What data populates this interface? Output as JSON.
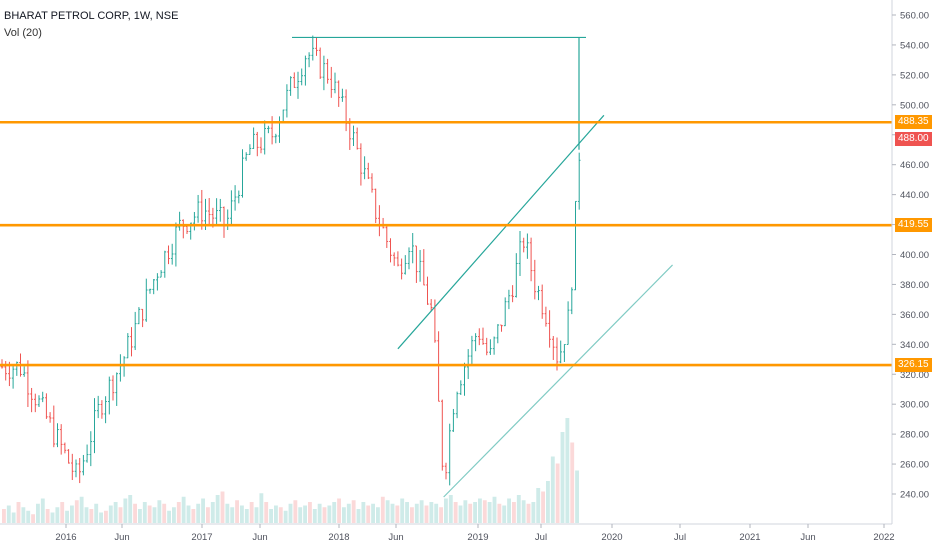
{
  "header": {
    "title": "BHARAT PETROL CORP, 1W, NSE",
    "volume_indicator": "Vol (20)"
  },
  "colors": {
    "up": "#26a69a",
    "down": "#ef5350",
    "level_line": "#ff9800",
    "trend_line": "#26a69a",
    "last_price_badge": "#ef5350",
    "level_badge": "#ff9800"
  },
  "chart_data": {
    "type": "candlestick",
    "y_axis_ticks": [
      560,
      540,
      520,
      500,
      480,
      460,
      440,
      420,
      400,
      380,
      360,
      340,
      320,
      300,
      280,
      260,
      240
    ],
    "x_axis_ticks": [
      "2016",
      "Jun",
      "2017",
      "Jun",
      "2018",
      "Jun",
      "2019",
      "Jul",
      "2020",
      "Jul",
      "2021",
      "Jun",
      "2022"
    ],
    "ylim": [
      222,
      566
    ],
    "horizontal_levels": [
      {
        "label": "488.35",
        "value": 488.35
      },
      {
        "label": "419.55",
        "value": 419.55
      },
      {
        "label": "326.15",
        "value": 326.15
      }
    ],
    "last_price": {
      "label": "488.00",
      "value": 488.0
    },
    "grid": false,
    "approx_price_path": [
      {
        "date": "2015-09",
        "value": 325
      },
      {
        "date": "2015-11",
        "value": 295
      },
      {
        "date": "2016-02",
        "value": 250
      },
      {
        "date": "2016-04",
        "value": 300
      },
      {
        "date": "2016-06",
        "value": 330
      },
      {
        "date": "2016-09",
        "value": 390
      },
      {
        "date": "2016-11",
        "value": 420
      },
      {
        "date": "2017-01",
        "value": 430
      },
      {
        "date": "2017-03",
        "value": 420
      },
      {
        "date": "2017-05",
        "value": 470
      },
      {
        "date": "2017-07",
        "value": 480
      },
      {
        "date": "2017-08",
        "value": 500
      },
      {
        "date": "2017-10",
        "value": 535
      },
      {
        "date": "2017-12",
        "value": 520
      },
      {
        "date": "2018-02",
        "value": 480
      },
      {
        "date": "2018-04",
        "value": 430
      },
      {
        "date": "2018-06",
        "value": 390
      },
      {
        "date": "2018-07",
        "value": 410
      },
      {
        "date": "2018-09",
        "value": 360
      },
      {
        "date": "2018-10",
        "value": 250
      },
      {
        "date": "2018-11",
        "value": 310
      },
      {
        "date": "2019-01",
        "value": 350
      },
      {
        "date": "2019-02",
        "value": 330
      },
      {
        "date": "2019-04",
        "value": 380
      },
      {
        "date": "2019-05",
        "value": 410
      },
      {
        "date": "2019-06",
        "value": 380
      },
      {
        "date": "2019-07",
        "value": 360
      },
      {
        "date": "2019-08",
        "value": 330
      },
      {
        "date": "2019-09",
        "value": 360
      },
      {
        "date": "2019-10",
        "value": 488
      }
    ],
    "volume_bars": [
      8,
      10,
      6,
      12,
      9,
      7,
      5,
      11,
      14,
      8,
      6,
      9,
      12,
      7,
      10,
      13,
      15,
      9,
      8,
      11,
      6,
      7,
      10,
      12,
      9,
      14,
      16,
      11,
      8,
      12,
      10,
      9,
      13,
      11,
      7,
      9,
      12,
      15,
      10,
      8,
      11,
      14,
      9,
      12,
      16,
      18,
      11,
      9,
      13,
      10,
      8,
      12,
      9,
      17,
      12,
      8,
      10,
      9,
      7,
      11,
      13,
      9,
      10,
      12,
      8,
      11,
      9,
      10,
      12,
      14,
      9,
      11,
      13,
      8,
      12,
      10,
      11,
      9,
      15,
      13,
      11,
      10,
      14,
      12,
      9,
      11,
      13,
      10,
      12,
      11,
      9,
      14,
      16,
      12,
      10,
      13,
      11,
      12,
      14,
      13,
      12,
      15,
      11,
      10,
      14,
      12,
      16,
      13,
      11,
      12,
      20,
      18,
      24,
      38,
      34,
      52,
      60,
      46,
      30
    ]
  },
  "drawings": {
    "resistance_top": {
      "value": 545
    },
    "upper_channel": [
      {
        "date": "2018-06",
        "value": 337
      },
      {
        "date": "2019-12",
        "value": 493
      }
    ],
    "lower_channel": [
      {
        "date": "2018-10",
        "value": 238
      },
      {
        "date": "2020-06",
        "value": 393
      }
    ]
  }
}
